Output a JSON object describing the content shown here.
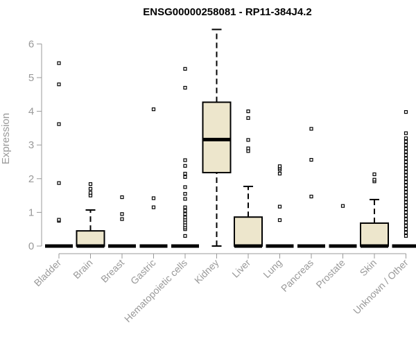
{
  "chart_data": {
    "type": "box",
    "title": "ENSG00000258081 - RP11-384J4.2",
    "xlabel": "",
    "ylabel": "Expression",
    "ylim": [
      0,
      6.6
    ],
    "yticks": [
      "0",
      "1",
      "2",
      "3",
      "4",
      "5",
      "6"
    ],
    "grid": false,
    "legend": "none",
    "colors": {
      "box_fill": "#ede6cc",
      "stroke": "#000000",
      "axis": "#999999"
    },
    "categories": [
      "Bladder",
      "Brain",
      "Breast",
      "Gastric",
      "Hematopoietic cells",
      "Kidney",
      "Liver",
      "Lung",
      "Pancreas",
      "Prostate",
      "Skin",
      "Unknown / Other"
    ],
    "boxes": [
      {
        "min": 0,
        "q1": 0,
        "median": 0,
        "q3": 0,
        "max": 0,
        "outliers": [
          0.75,
          0.78,
          1.87,
          3.62,
          4.8,
          5.43
        ]
      },
      {
        "min": 0,
        "q1": 0,
        "median": 0,
        "q3": 0.45,
        "max": 1.07,
        "outliers": [
          1.5,
          1.58,
          1.7,
          1.84
        ]
      },
      {
        "min": 0,
        "q1": 0,
        "median": 0,
        "q3": 0,
        "max": 0,
        "outliers": [
          0.8,
          0.95,
          1.45
        ]
      },
      {
        "min": 0,
        "q1": 0,
        "median": 0,
        "q3": 0,
        "max": 0,
        "outliers": [
          1.15,
          1.42,
          4.06
        ]
      },
      {
        "min": 0,
        "q1": 0,
        "median": 0,
        "q3": 0,
        "max": 0,
        "outliers": [
          0.3,
          0.5,
          0.55,
          0.62,
          0.7,
          0.78,
          0.85,
          0.95,
          1.05,
          1.15,
          1.4,
          1.55,
          1.75,
          2.05,
          2.15,
          2.38,
          2.55,
          4.7,
          5.26
        ]
      },
      {
        "min": 0,
        "q1": 2.18,
        "median": 3.16,
        "q3": 4.27,
        "max": 6.43,
        "outliers": []
      },
      {
        "min": 0,
        "q1": 0,
        "median": 0,
        "q3": 0.86,
        "max": 1.77,
        "outliers": [
          2.82,
          2.9,
          3.15,
          3.8,
          4.0
        ]
      },
      {
        "min": 0,
        "q1": 0,
        "median": 0,
        "q3": 0,
        "max": 0,
        "outliers": [
          0.77,
          1.17,
          2.15,
          2.27,
          2.32,
          2.37
        ]
      },
      {
        "min": 0,
        "q1": 0,
        "median": 0,
        "q3": 0,
        "max": 0,
        "outliers": [
          1.47,
          2.56,
          3.48
        ]
      },
      {
        "min": 0,
        "q1": 0,
        "median": 0,
        "q3": 0,
        "max": 0,
        "outliers": [
          1.19
        ]
      },
      {
        "min": 0,
        "q1": 0,
        "median": 0,
        "q3": 0.68,
        "max": 1.38,
        "outliers": [
          1.92,
          1.97,
          2.13
        ]
      },
      {
        "min": 0,
        "q1": 0,
        "median": 0,
        "q3": 0,
        "max": 0,
        "outliers": [
          0.3,
          0.4,
          0.5,
          0.6,
          0.7,
          0.8,
          0.9,
          1.0,
          1.1,
          1.2,
          1.3,
          1.4,
          1.5,
          1.6,
          1.7,
          1.8,
          1.9,
          2.0,
          2.1,
          2.2,
          2.3,
          2.4,
          2.5,
          2.6,
          2.7,
          2.8,
          2.9,
          3.0,
          3.1,
          3.2,
          3.35,
          3.98
        ]
      }
    ]
  }
}
